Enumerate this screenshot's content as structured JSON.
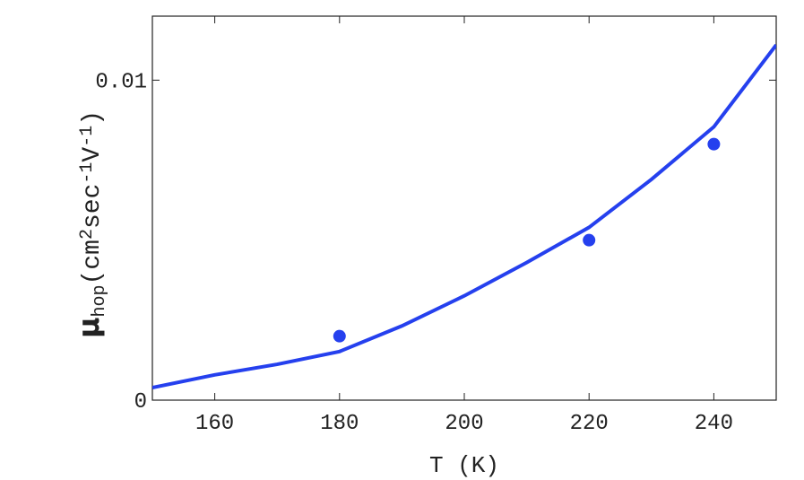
{
  "chart_data": {
    "type": "scatter",
    "x_label": "T (K)",
    "y_label": [
      {
        "text": "μ",
        "shift": "normal"
      },
      {
        "text": "hop",
        "shift": "sub"
      },
      {
        "text": "(cm",
        "shift": "normal"
      },
      {
        "text": "2",
        "shift": "super"
      },
      {
        "text": "sec",
        "shift": "normal"
      },
      {
        "text": "-1",
        "shift": "super"
      },
      {
        "text": "V",
        "shift": "normal"
      },
      {
        "text": "-1",
        "shift": "super"
      },
      {
        "text": ")",
        "shift": "normal"
      }
    ],
    "xlim": [
      150,
      250
    ],
    "ylim": [
      0,
      0.012
    ],
    "xticks": [
      160,
      180,
      200,
      220,
      240
    ],
    "yticks": [
      0,
      0.01
    ],
    "series": [
      {
        "type": "scatter",
        "color": "#2540ee",
        "x": [
          180,
          220,
          240
        ],
        "values": [
          0.002,
          0.005,
          0.008
        ]
      },
      {
        "type": "line",
        "color": "#2540ee",
        "x": [
          150,
          160,
          170,
          180,
          190,
          200,
          210,
          220,
          230,
          240,
          250
        ],
        "values": [
          0.00039,
          0.00079,
          0.00112,
          0.00152,
          0.00232,
          0.00326,
          0.0043,
          0.0054,
          0.0069,
          0.00854,
          0.0111
        ]
      }
    ]
  }
}
